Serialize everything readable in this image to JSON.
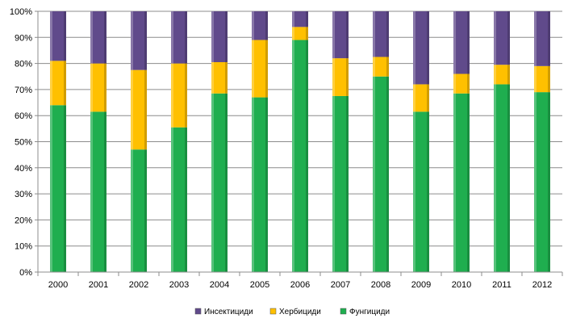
{
  "chart_data": {
    "type": "bar",
    "stacked": true,
    "percent": true,
    "categories": [
      "2000",
      "2001",
      "2002",
      "2003",
      "2004",
      "2005",
      "2006",
      "2007",
      "2008",
      "2009",
      "2010",
      "2011",
      "2012"
    ],
    "series": [
      {
        "name": "Фунгициди",
        "color": "#1fae4f",
        "values": [
          64,
          61.5,
          47,
          55.5,
          68.5,
          67,
          89,
          67.5,
          75,
          61.5,
          68.5,
          72,
          69
        ]
      },
      {
        "name": "Хербициди",
        "color": "#ffc000",
        "values": [
          17,
          18.5,
          30.5,
          24.5,
          12,
          22,
          5,
          14.5,
          7.5,
          10.5,
          7.5,
          7.5,
          10
        ]
      },
      {
        "name": "Инсектициди",
        "color": "#604a8b",
        "values": [
          19,
          20,
          22.5,
          20,
          19.5,
          11,
          6,
          18,
          17.5,
          28,
          24,
          20.5,
          21
        ]
      }
    ],
    "yticks": [
      "0%",
      "10%",
      "20%",
      "30%",
      "40%",
      "50%",
      "60%",
      "70%",
      "80%",
      "90%",
      "100%"
    ],
    "ylim": [
      0,
      100
    ],
    "grid": true,
    "legend_position": "bottom",
    "legend_order": [
      "Инсектициди",
      "Хербициди",
      "Фунгициди"
    ],
    "title": "",
    "xlabel": "",
    "ylabel": ""
  }
}
